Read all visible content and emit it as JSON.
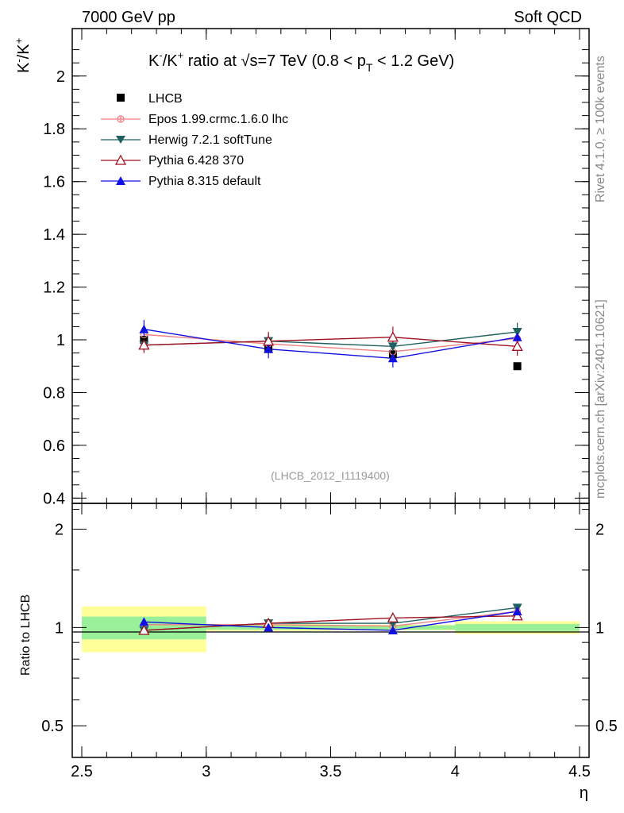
{
  "header": {
    "left": "7000 GeV pp",
    "right": "Soft QCD"
  },
  "side_labels": {
    "rivet": "Rivet 4.1.0, ≥ 100k events",
    "mcplots": "mcplots.cern.ch [arXiv:2401.10621]"
  },
  "analysis_tag": "(LHCB_2012_I1119400)",
  "chart_data": {
    "type": "scatter",
    "title": "K⁻/K⁺ ratio at √s=7 TeV (0.8 < pT < 1.2 GeV)",
    "title_parts": {
      "prefix": "K",
      "minus": "-",
      "slash": "/K",
      "plus": "+",
      "mid": " ratio at ",
      "sqrt": "√",
      "after_sqrt": "s=7 TeV (0.8 < p",
      "sub": "T",
      "end": " < 1.2 GeV)"
    },
    "ylabel_parts": {
      "k": "K",
      "minus": "-",
      "slash": "/K",
      "plus": "+"
    },
    "xlabel": "η",
    "ratio_ylabel": "Ratio to LHCB",
    "xlim": [
      2.5,
      4.5
    ],
    "ylim": [
      0.38,
      2.18
    ],
    "ratio_ylim": [
      0.4,
      2.4
    ],
    "x_ticks": [
      "2.5",
      "3",
      "3.5",
      "4",
      "4.5"
    ],
    "y_ticks": [
      "0.4",
      "0.6",
      "0.8",
      "1",
      "1.2",
      "1.4",
      "1.6",
      "1.8",
      "2"
    ],
    "ratio_ticks": [
      "0.5",
      "1",
      "2"
    ],
    "x": [
      2.75,
      3.25,
      3.75,
      4.25
    ],
    "reference": {
      "name": "LHCB",
      "values": [
        1.0,
        0.965,
        0.945,
        0.9
      ],
      "bins": [
        [
          2.5,
          3.0
        ],
        [
          3.0,
          3.5
        ],
        [
          3.5,
          4.0
        ],
        [
          4.0,
          4.5
        ]
      ],
      "ratio_stat_band": [
        [
          0.92,
          1.08
        ],
        [
          0.985,
          1.015
        ],
        [
          0.985,
          1.015
        ],
        [
          0.975,
          1.025
        ]
      ],
      "ratio_total_band": [
        [
          0.84,
          1.16
        ],
        [
          0.975,
          1.025
        ],
        [
          0.98,
          1.02
        ],
        [
          0.955,
          1.045
        ]
      ]
    },
    "series": [
      {
        "name": "Epos 1.99.crmc.1.6.0 lhc",
        "color": "#f08080",
        "marker": "cross",
        "values": [
          1.02,
          0.985,
          0.955,
          1.005
        ],
        "errors": [
          0.02,
          0.02,
          0.02,
          0.02
        ]
      },
      {
        "name": "Herwig 7.2.1 softTune",
        "color": "#1f5f5f",
        "marker": "triangle-down",
        "values": [
          0.98,
          0.995,
          0.975,
          1.03
        ],
        "errors": [
          0.025,
          0.03,
          0.03,
          0.035
        ]
      },
      {
        "name": "Pythia 6.428 370",
        "color": "#a01020",
        "marker": "triangle-open",
        "values": [
          0.98,
          0.995,
          1.01,
          0.975
        ],
        "errors": [
          0.03,
          0.035,
          0.04,
          0.035
        ]
      },
      {
        "name": "Pythia 8.315 default",
        "color": "#1010e0",
        "marker": "triangle-up",
        "values": [
          1.04,
          0.965,
          0.93,
          1.01
        ],
        "errors": [
          0.035,
          0.035,
          0.035,
          0.035
        ]
      }
    ],
    "ratio_series": [
      {
        "name": "Epos 1.99.crmc.1.6.0 lhc",
        "values": [
          1.02,
          1.02,
          1.01,
          1.12
        ]
      },
      {
        "name": "Herwig 7.2.1 softTune",
        "values": [
          0.98,
          1.03,
          1.03,
          1.15
        ]
      },
      {
        "name": "Pythia 6.428 370",
        "values": [
          0.98,
          1.03,
          1.07,
          1.085
        ]
      },
      {
        "name": "Pythia 8.315 default",
        "values": [
          1.04,
          1.0,
          0.98,
          1.12
        ]
      }
    ]
  }
}
